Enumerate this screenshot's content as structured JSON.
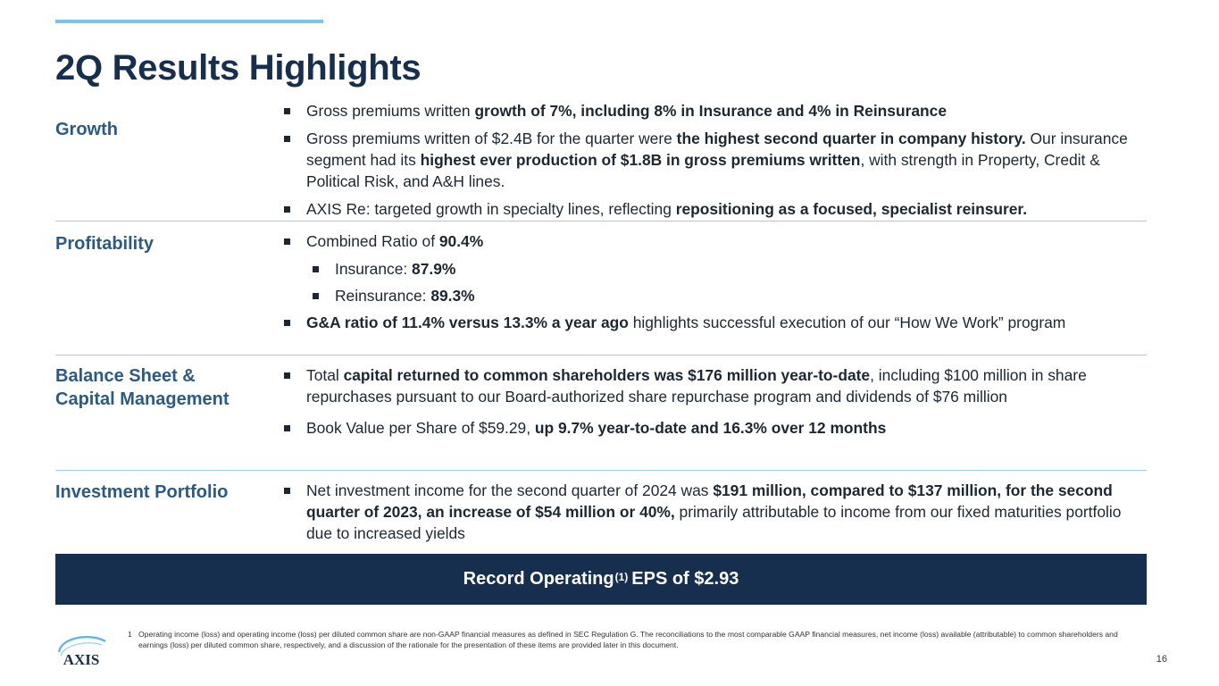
{
  "title": "2Q Results Highlights",
  "sections": {
    "growth": {
      "label": "Growth",
      "b1": {
        "t1": "Gross premiums written ",
        "b1": "growth of 7%, including 8% in Insurance and 4% in Reinsurance"
      },
      "b2": {
        "t1": "Gross premiums written of $2.4B for the quarter were ",
        "b1": "the highest second quarter in company history.",
        "t2": " Our insurance segment had its ",
        "b2": "highest ever production of $1.8B in gross premiums written",
        "t3": ", with strength in Property, Credit & Political Risk, and A&H lines."
      },
      "b3": {
        "t1": "AXIS Re: targeted growth in specialty lines, reflecting ",
        "b1": "repositioning as a focused, specialist reinsurer."
      }
    },
    "profitability": {
      "label": "Profitability",
      "b1": {
        "t1": "Combined Ratio of ",
        "b1": "90.4%"
      },
      "s1": {
        "t1": "Insurance: ",
        "b1": "87.9%"
      },
      "s2": {
        "t1": "Reinsurance: ",
        "b1": "89.3%"
      },
      "b2": {
        "b1": "G&A ratio of 11.4% versus 13.3% a year ago",
        "t1": " highlights successful execution of our “How We Work” program"
      }
    },
    "balance": {
      "label_line1": "Balance Sheet &",
      "label_line2": "Capital Management",
      "b1": {
        "t1": "Total ",
        "b1": "capital returned to common shareholders was $176 million year-to-date",
        "t2": ", including $100 million in share repurchases pursuant to our Board-authorized share repurchase program and dividends of $76 million"
      },
      "b2": {
        "t1": "Book Value per Share of $59.29, ",
        "b1": "up 9.7% year-to-date and 16.3% over 12 months"
      }
    },
    "investment": {
      "label": "Investment Portfolio",
      "b1": {
        "t1": "Net investment income for the second quarter of 2024 was ",
        "b1": "$191 million, compared to $137 million, for the second quarter of 2023, an increase of $54 million or 40%,",
        "t2": " primarily attributable to income from our fixed maturities portfolio due to increased yields"
      }
    }
  },
  "record": {
    "pre": "Record Operating",
    "sup": "(1)",
    "post": "EPS of $2.93"
  },
  "footnote": {
    "num": "1",
    "text": "Operating income (loss) and operating income (loss) per diluted common share are non-GAAP financial measures as defined in SEC Regulation G. The reconciliations to the most comparable GAAP financial measures, net income (loss) available (attributable) to common shareholders and earnings (loss) per diluted common share, respectively, and a discussion of the rationale for the presentation of these items are provided later in this document."
  },
  "logo": {
    "text": "AXIS"
  },
  "page_number": "16",
  "colors": {
    "navy": "#162f4e",
    "label_blue": "#2a5b86",
    "accent": "#7cc4e8",
    "divider": "#9bd0ea"
  }
}
